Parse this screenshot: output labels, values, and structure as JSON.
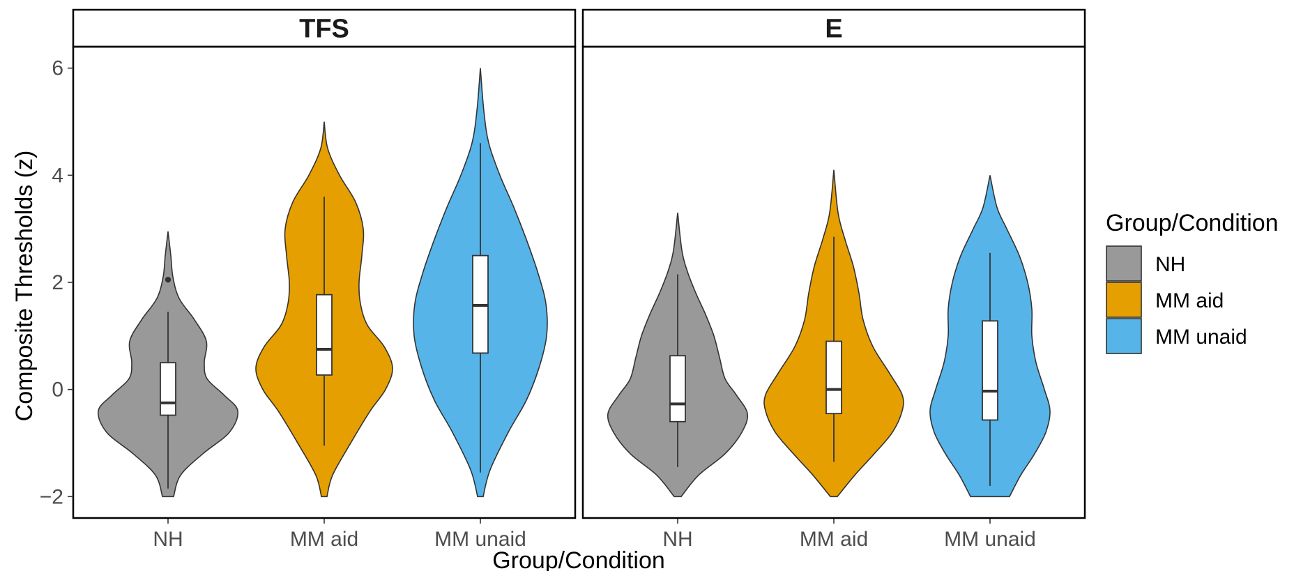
{
  "chart_data": {
    "type": "violin",
    "xlabel": "Group/Condition",
    "ylabel": "Composite Thresholds (z)",
    "ylim": [
      -2.4,
      6.4
    ],
    "yticks": [
      -2,
      0,
      2,
      4,
      6
    ],
    "ytick_labels": [
      "−2",
      "0",
      "2",
      "4",
      "6"
    ],
    "categories": [
      "NH",
      "MM aid",
      "MM unaid"
    ],
    "colors": [
      "#999999",
      "#E69F00",
      "#56B4E9"
    ],
    "legend": {
      "title": "Group/Condition",
      "position": "right",
      "entries": [
        "NH",
        "MM aid",
        "MM unaid"
      ]
    },
    "grid": false,
    "panels": [
      {
        "title": "TFS",
        "groups": [
          {
            "name": "NH",
            "min": -1.95,
            "max": 2.95,
            "q1": -0.48,
            "median": -0.25,
            "q3": 0.5,
            "whisker_low": -1.85,
            "whisker_high": 1.45,
            "outliers": [
              2.05
            ],
            "density": [
              [
                -2.0,
                0.08
              ],
              [
                -1.6,
                0.18
              ],
              [
                -1.2,
                0.5
              ],
              [
                -0.8,
                0.88
              ],
              [
                -0.4,
                1.0
              ],
              [
                -0.1,
                0.8
              ],
              [
                0.2,
                0.56
              ],
              [
                0.5,
                0.52
              ],
              [
                0.9,
                0.55
              ],
              [
                1.3,
                0.38
              ],
              [
                1.7,
                0.16
              ],
              [
                2.1,
                0.07
              ],
              [
                2.5,
                0.04
              ],
              [
                2.95,
                0.0
              ]
            ]
          },
          {
            "name": "MM aid",
            "min": -2.0,
            "max": 5.0,
            "q1": 0.27,
            "median": 0.75,
            "q3": 1.77,
            "whisker_low": -1.05,
            "whisker_high": 3.6,
            "outliers": [],
            "density": [
              [
                -2.0,
                0.04
              ],
              [
                -1.6,
                0.12
              ],
              [
                -1.0,
                0.38
              ],
              [
                -0.4,
                0.66
              ],
              [
                0.0,
                0.88
              ],
              [
                0.4,
                0.98
              ],
              [
                0.8,
                0.86
              ],
              [
                1.2,
                0.62
              ],
              [
                1.6,
                0.52
              ],
              [
                2.0,
                0.5
              ],
              [
                2.5,
                0.54
              ],
              [
                3.0,
                0.56
              ],
              [
                3.5,
                0.45
              ],
              [
                4.0,
                0.22
              ],
              [
                4.5,
                0.05
              ],
              [
                5.0,
                0.0
              ]
            ]
          },
          {
            "name": "MM unaid",
            "min": -2.0,
            "max": 6.0,
            "q1": 0.68,
            "median": 1.57,
            "q3": 2.5,
            "whisker_low": -1.55,
            "whisker_high": 4.6,
            "outliers": [],
            "density": [
              [
                -2.0,
                0.04
              ],
              [
                -1.5,
                0.14
              ],
              [
                -0.8,
                0.4
              ],
              [
                -0.2,
                0.66
              ],
              [
                0.4,
                0.84
              ],
              [
                1.0,
                0.95
              ],
              [
                1.6,
                0.94
              ],
              [
                2.2,
                0.82
              ],
              [
                2.8,
                0.66
              ],
              [
                3.4,
                0.48
              ],
              [
                4.0,
                0.28
              ],
              [
                4.6,
                0.12
              ],
              [
                5.2,
                0.05
              ],
              [
                6.0,
                0.0
              ]
            ]
          }
        ]
      },
      {
        "title": "E",
        "groups": [
          {
            "name": "NH",
            "min": -2.0,
            "max": 3.3,
            "q1": -0.6,
            "median": -0.27,
            "q3": 0.63,
            "whisker_low": -1.45,
            "whisker_high": 2.15,
            "outliers": [],
            "density": [
              [
                -2.0,
                0.05
              ],
              [
                -1.6,
                0.3
              ],
              [
                -1.2,
                0.68
              ],
              [
                -0.8,
                0.92
              ],
              [
                -0.45,
                1.0
              ],
              [
                -0.1,
                0.84
              ],
              [
                0.2,
                0.68
              ],
              [
                0.6,
                0.6
              ],
              [
                1.0,
                0.52
              ],
              [
                1.4,
                0.4
              ],
              [
                1.8,
                0.26
              ],
              [
                2.2,
                0.14
              ],
              [
                2.6,
                0.06
              ],
              [
                3.3,
                0.0
              ]
            ]
          },
          {
            "name": "MM aid",
            "min": -2.0,
            "max": 4.1,
            "q1": -0.45,
            "median": 0.0,
            "q3": 0.9,
            "whisker_low": -1.35,
            "whisker_high": 2.85,
            "outliers": [],
            "density": [
              [
                -2.0,
                0.05
              ],
              [
                -1.6,
                0.3
              ],
              [
                -1.2,
                0.58
              ],
              [
                -0.8,
                0.84
              ],
              [
                -0.4,
                0.98
              ],
              [
                -0.1,
                0.98
              ],
              [
                0.3,
                0.8
              ],
              [
                0.8,
                0.56
              ],
              [
                1.3,
                0.42
              ],
              [
                1.8,
                0.36
              ],
              [
                2.3,
                0.28
              ],
              [
                2.8,
                0.16
              ],
              [
                3.3,
                0.06
              ],
              [
                4.1,
                0.0
              ]
            ]
          },
          {
            "name": "MM unaid",
            "min": -2.0,
            "max": 4.0,
            "q1": -0.57,
            "median": -0.03,
            "q3": 1.28,
            "whisker_low": -1.8,
            "whisker_high": 2.55,
            "outliers": [],
            "density": [
              [
                -2.0,
                0.28
              ],
              [
                -1.6,
                0.44
              ],
              [
                -1.2,
                0.64
              ],
              [
                -0.8,
                0.8
              ],
              [
                -0.4,
                0.86
              ],
              [
                0.0,
                0.78
              ],
              [
                0.5,
                0.66
              ],
              [
                1.0,
                0.6
              ],
              [
                1.5,
                0.6
              ],
              [
                2.0,
                0.54
              ],
              [
                2.5,
                0.42
              ],
              [
                3.0,
                0.24
              ],
              [
                3.4,
                0.1
              ],
              [
                4.0,
                0.0
              ]
            ]
          }
        ]
      }
    ]
  }
}
